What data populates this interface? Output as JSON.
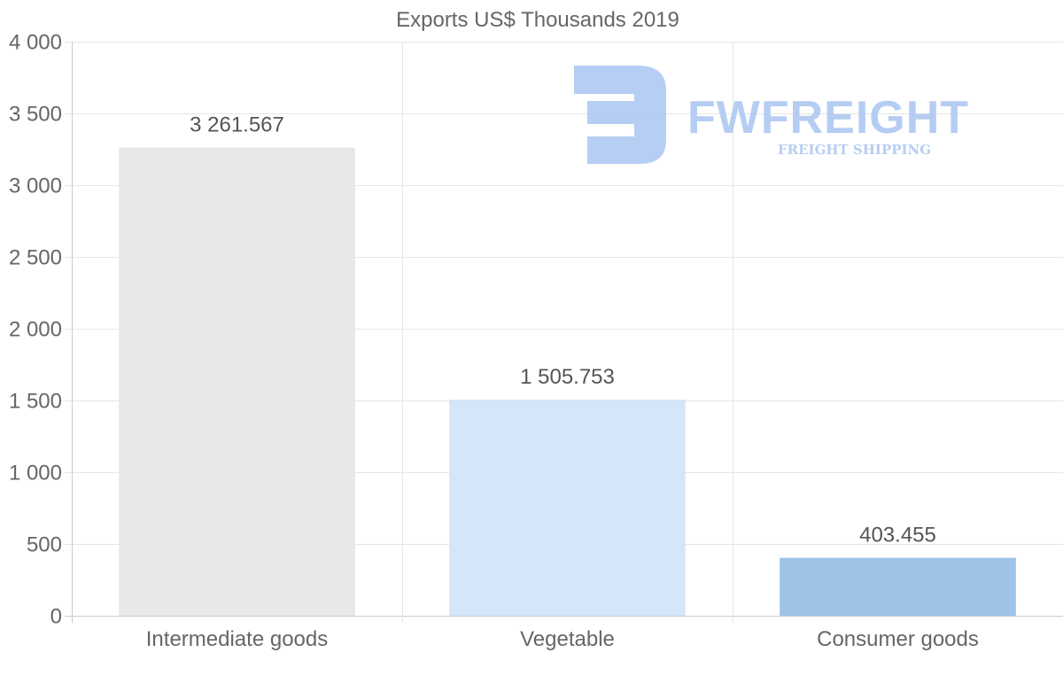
{
  "chart_data": {
    "type": "bar",
    "title": "Exports US$ Thousands 2019",
    "categories": [
      "Intermediate goods",
      "Vegetable",
      "Consumer goods"
    ],
    "values": [
      3261.567,
      1505.753,
      403.455
    ],
    "value_labels": [
      "3 261.567",
      "1 505.753",
      "403.455"
    ],
    "bar_colors": [
      "#e8e8e8",
      "#d6e6fa",
      "#9dc3e6"
    ],
    "ylim": [
      0,
      4000
    ],
    "yticks": [
      0,
      500,
      1000,
      1500,
      2000,
      2500,
      3000,
      3500,
      4000
    ],
    "ytick_labels": [
      "0",
      "500",
      "1 000",
      "1 500",
      "2 000",
      "2 500",
      "3 000",
      "3 500",
      "4 000"
    ],
    "xlabel": "",
    "ylabel": "",
    "grid": true
  },
  "watermark": {
    "brand": "FWFREIGHT",
    "tagline": "FREIGHT SHIPPING",
    "color": "#b3cbf3"
  }
}
